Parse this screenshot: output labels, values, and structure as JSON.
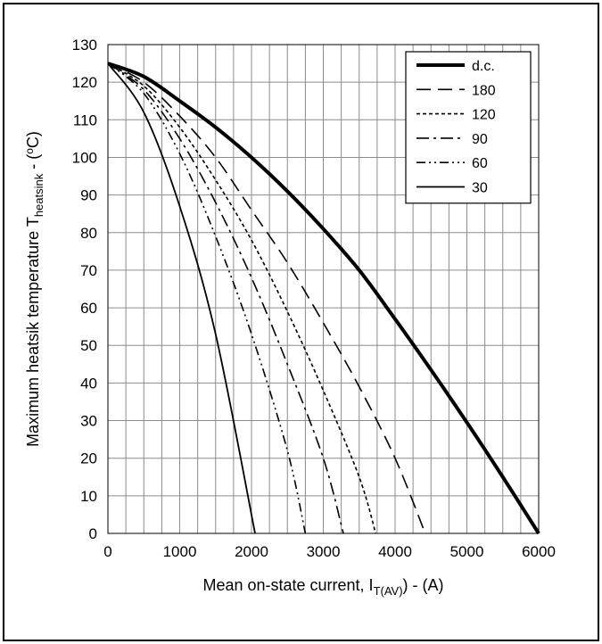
{
  "chart_data": {
    "type": "line",
    "title": "",
    "xlabel": {
      "prefix": "Mean on-state current, I",
      "subscript": "T(AV)",
      "suffix": ") - (A)"
    },
    "ylabel": {
      "prefix": "Maximum heatsik temperature T",
      "subscript": "heatsink",
      "suffix": " - (",
      "superscript": "o",
      "unit": "C)"
    },
    "xlim": [
      0,
      6000
    ],
    "ylim": [
      0,
      130
    ],
    "x_ticks": [
      "0",
      "1000",
      "2000",
      "3000",
      "4000",
      "5000",
      "6000"
    ],
    "y_ticks": [
      "0",
      "10",
      "20",
      "30",
      "40",
      "50",
      "60",
      "70",
      "80",
      "90",
      "100",
      "110",
      "120",
      "130"
    ],
    "grid": true,
    "legend_position": "top-right",
    "series": [
      {
        "name": "d.c.",
        "style": "thick-solid",
        "x": [
          0,
          500,
          1000,
          1500,
          2000,
          2500,
          3000,
          3500,
          4000,
          4500,
          5000,
          5500,
          6000
        ],
        "y": [
          125,
          121.5,
          115,
          108,
          100,
          91,
          81,
          70,
          57,
          43.5,
          29.5,
          15,
          0
        ]
      },
      {
        "name": "180",
        "style": "long-dash",
        "x": [
          0,
          500,
          1000,
          1500,
          2000,
          2500,
          3000,
          3500,
          4000,
          4420
        ],
        "y": [
          125,
          120,
          111,
          100,
          86,
          72,
          56,
          39,
          20,
          0
        ]
      },
      {
        "name": "120",
        "style": "short-dash",
        "x": [
          0,
          500,
          1000,
          1500,
          2000,
          2500,
          3000,
          3500,
          3730
        ],
        "y": [
          125,
          119,
          108,
          94,
          78,
          59,
          38,
          15,
          0
        ]
      },
      {
        "name": "90",
        "style": "dash-dot",
        "x": [
          0,
          500,
          1000,
          1500,
          2000,
          2500,
          3000,
          3280
        ],
        "y": [
          125,
          118,
          105,
          88,
          68,
          45,
          20,
          0
        ]
      },
      {
        "name": "60",
        "style": "dash-dot-dot",
        "x": [
          0,
          500,
          1000,
          1500,
          2000,
          2500,
          2750
        ],
        "y": [
          125,
          117,
          101,
          79,
          53,
          22,
          0
        ]
      },
      {
        "name": "30",
        "style": "thin-solid",
        "x": [
          0,
          500,
          1000,
          1500,
          2050
        ],
        "y": [
          125,
          112,
          87,
          53,
          0
        ]
      }
    ]
  }
}
